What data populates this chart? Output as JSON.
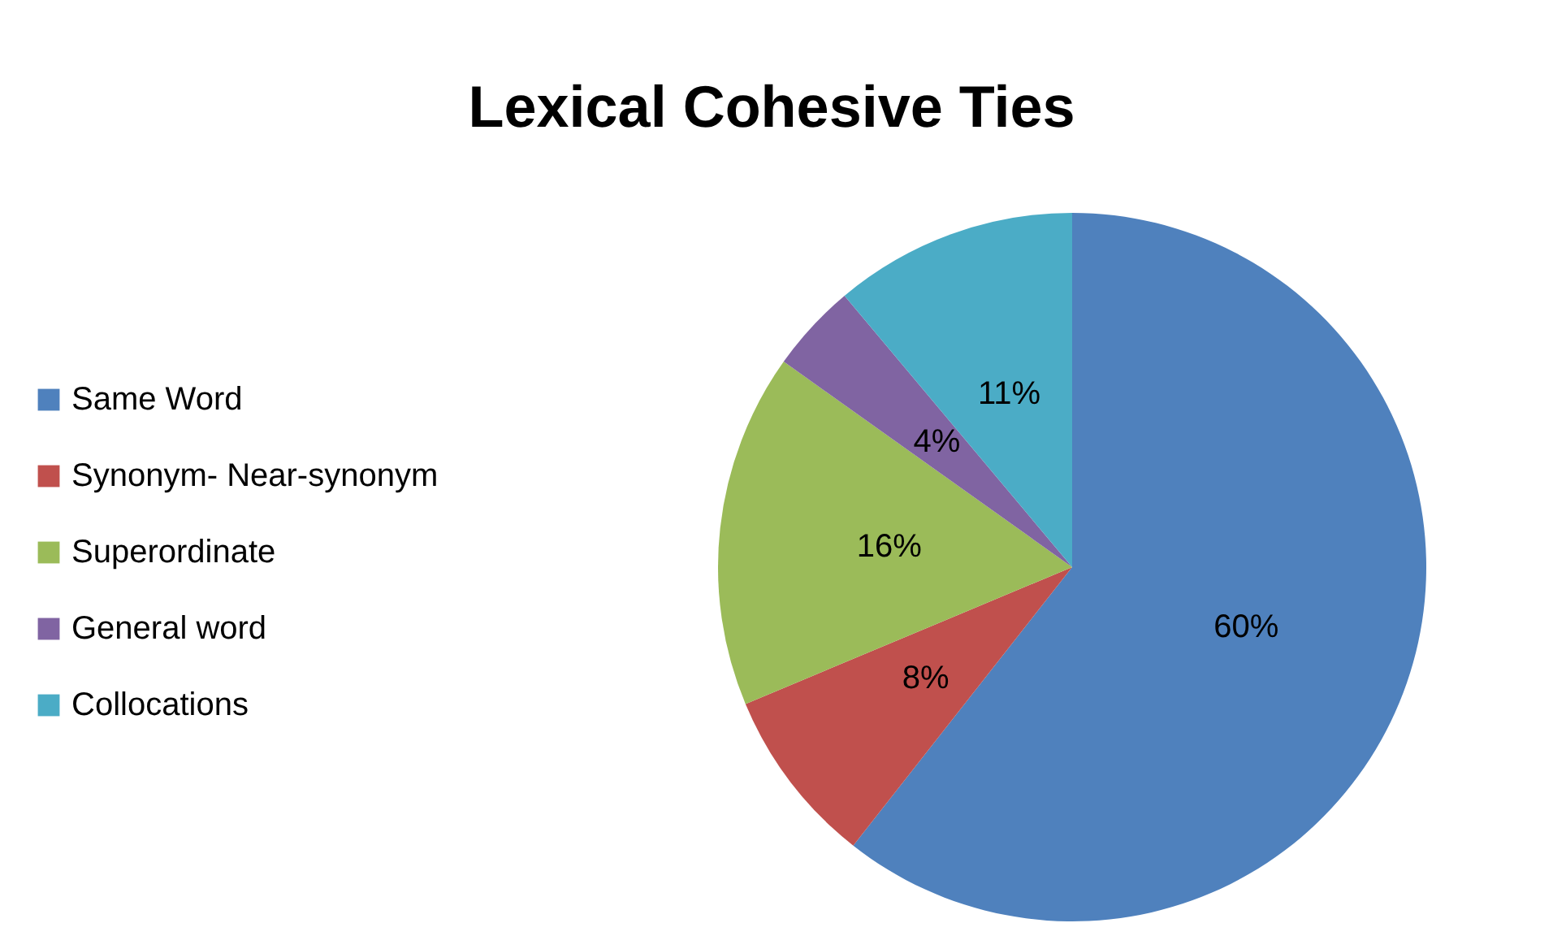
{
  "chart_data": {
    "type": "pie",
    "title": "Lexical Cohesive Ties",
    "categories": [
      "Same  Word",
      "Synonym- Near-synonym",
      "Superordinate",
      "General word",
      "Collocations"
    ],
    "values": [
      60,
      8,
      16,
      4,
      11
    ],
    "colors": [
      "#4f81bd",
      "#c0504d",
      "#9bbb59",
      "#8064a2",
      "#4bacc6"
    ],
    "value_labels": [
      "60%",
      "8%",
      "16%",
      "4%",
      "11%"
    ],
    "legend": "left"
  }
}
